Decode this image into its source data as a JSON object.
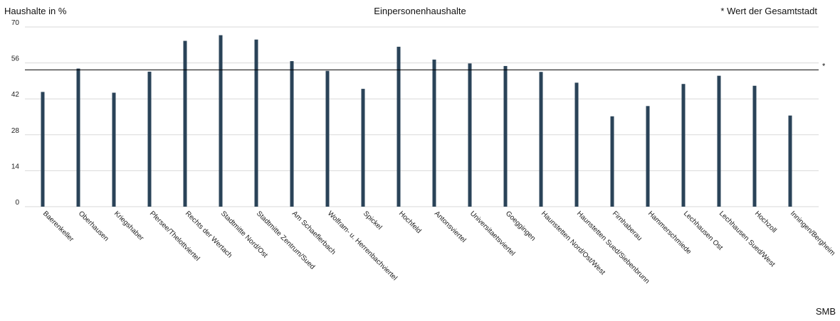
{
  "chart_data": {
    "type": "bar",
    "title": "Einpersonenhaushalte",
    "ylabel": "Haushalte in %",
    "xlabel": "",
    "ylim": [
      0,
      70
    ],
    "yticks": [
      0,
      14,
      28,
      42,
      56,
      70
    ],
    "grid": true,
    "reference_line": {
      "value": 53.3,
      "marker": "*",
      "legend": "* Wert der Gesamtstadt"
    },
    "categories": [
      "Baerenkeller",
      "Oberhausen",
      "Kriegshaber",
      "Pfersee/Thelottviertel",
      "Rechts der Wertach",
      "Stadtmitte Nord/Ost",
      "Stadtmitte Zentrum/Sued",
      "Am Schaeflerbach",
      "Wolfram- u. Herrenbachviertel",
      "Spickel",
      "Hochfeld",
      "Antonsviertel",
      "Universitaetsviertel",
      "Goeggingen",
      "Haunstetten Nord/Ost/West",
      "Haunstetten Sued/Siebenbrunn",
      "Firnhaberau",
      "Hammerschmiede",
      "Lechhausen Ost",
      "Lechhausen Sued/West",
      "Hochzoll",
      "Inningen/Bergheim"
    ],
    "values": [
      44.7,
      53.8,
      44.4,
      52.6,
      64.6,
      66.8,
      65.1,
      56.7,
      52.9,
      45.9,
      62.3,
      57.3,
      55.8,
      54.8,
      52.5,
      48.3,
      35.2,
      39.2,
      47.8,
      51.0,
      47.1,
      35.5
    ],
    "source": "SMB"
  }
}
